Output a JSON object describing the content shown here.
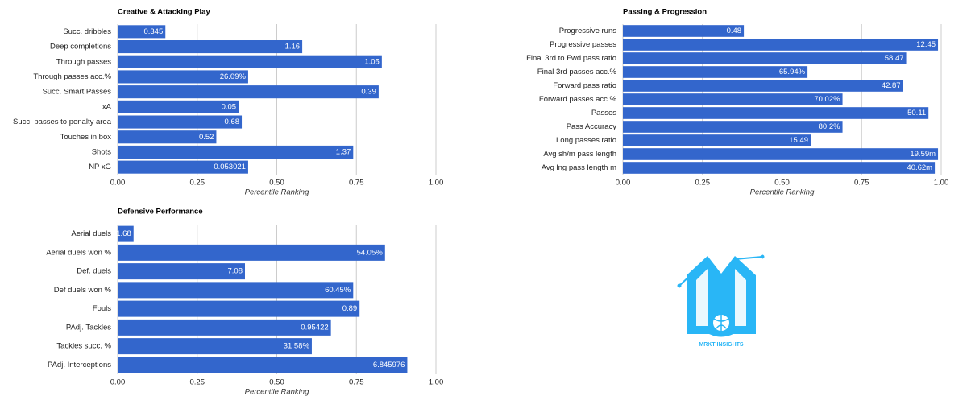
{
  "chart_data": [
    {
      "type": "bar",
      "orientation": "horizontal",
      "title": "Creative & Attacking Play",
      "color": "#3366cc",
      "grid": true,
      "categories": [
        "Succ. dribbles",
        "Deep completions",
        "Through passes",
        "Through passes acc.%",
        "Succ. Smart Passes",
        "xA",
        "Succ. passes to penalty area",
        "Touches in box",
        "Shots",
        "NP xG"
      ],
      "values": [
        0.15,
        0.58,
        0.83,
        0.41,
        0.82,
        0.38,
        0.39,
        0.31,
        0.74,
        0.41
      ],
      "stat_labels": [
        "0.345",
        "1.16",
        "1.05",
        "26.09%",
        "0.39",
        "0.05",
        "0.68",
        "0.52",
        "1.37",
        "0.053021"
      ],
      "xlim": [
        0,
        1
      ],
      "xticks": [
        {
          "value": 0,
          "label": "0.00"
        },
        0.25,
        {
          "value": 0.5,
          "label": "0.50"
        },
        0.75,
        {
          "value": 1,
          "label": "1.00"
        }
      ],
      "xlabel": "Percentile Ranking"
    },
    {
      "type": "bar",
      "orientation": "horizontal",
      "title": "Passing & Progression",
      "color": "#3366cc",
      "grid": true,
      "categories": [
        "Progressive runs",
        "Progressive passes",
        "Final 3rd to Fwd pass ratio",
        "Final 3rd passes acc.%",
        "Forward pass ratio",
        "Forward passes acc.%",
        "Passes",
        "Pass Accuracy",
        "Long passes ratio",
        "Avg sh/m pass length",
        "Avg lng pass length m"
      ],
      "values": [
        0.38,
        0.99,
        0.89,
        0.58,
        0.88,
        0.69,
        0.96,
        0.69,
        0.59,
        0.99,
        0.98
      ],
      "stat_labels": [
        "0.48",
        "12.45",
        "58.47",
        "65.94%",
        "42.87",
        "70.02%",
        "50.11",
        "80.2%",
        "15.49",
        "19.59m",
        "40.62m"
      ],
      "xlim": [
        0,
        1
      ],
      "xticks": [
        {
          "value": 0,
          "label": "0.00"
        },
        0.25,
        {
          "value": 0.5,
          "label": "0.50"
        },
        0.75,
        {
          "value": 1,
          "label": "1.00"
        }
      ],
      "xlabel": "Percentile Ranking"
    },
    {
      "type": "bar",
      "orientation": "horizontal",
      "title": "Defensive Performance",
      "color": "#3366cc",
      "grid": true,
      "categories": [
        "Aerial duels",
        "Aerial duels won %",
        "Def. duels",
        "Def duels won %",
        "Fouls",
        "PAdj. Tackles",
        "Tackles succ. %",
        "PAdj. Interceptions"
      ],
      "values": [
        0.05,
        0.84,
        0.4,
        0.74,
        0.76,
        0.67,
        0.61,
        0.91
      ],
      "stat_labels": [
        "1.68",
        "54.05%",
        "7.08",
        "60.45%",
        "0.89",
        "0.95422",
        "31.58%",
        "6.845976"
      ],
      "xlim": [
        0,
        1
      ],
      "xticks": [
        {
          "value": 0,
          "label": "0.00"
        },
        0.25,
        {
          "value": 0.5,
          "label": "0.50"
        },
        0.75,
        {
          "value": 1,
          "label": "1.00"
        }
      ],
      "xlabel": "Percentile Ranking"
    }
  ],
  "logo_text": "MRKT INSIGHTS"
}
